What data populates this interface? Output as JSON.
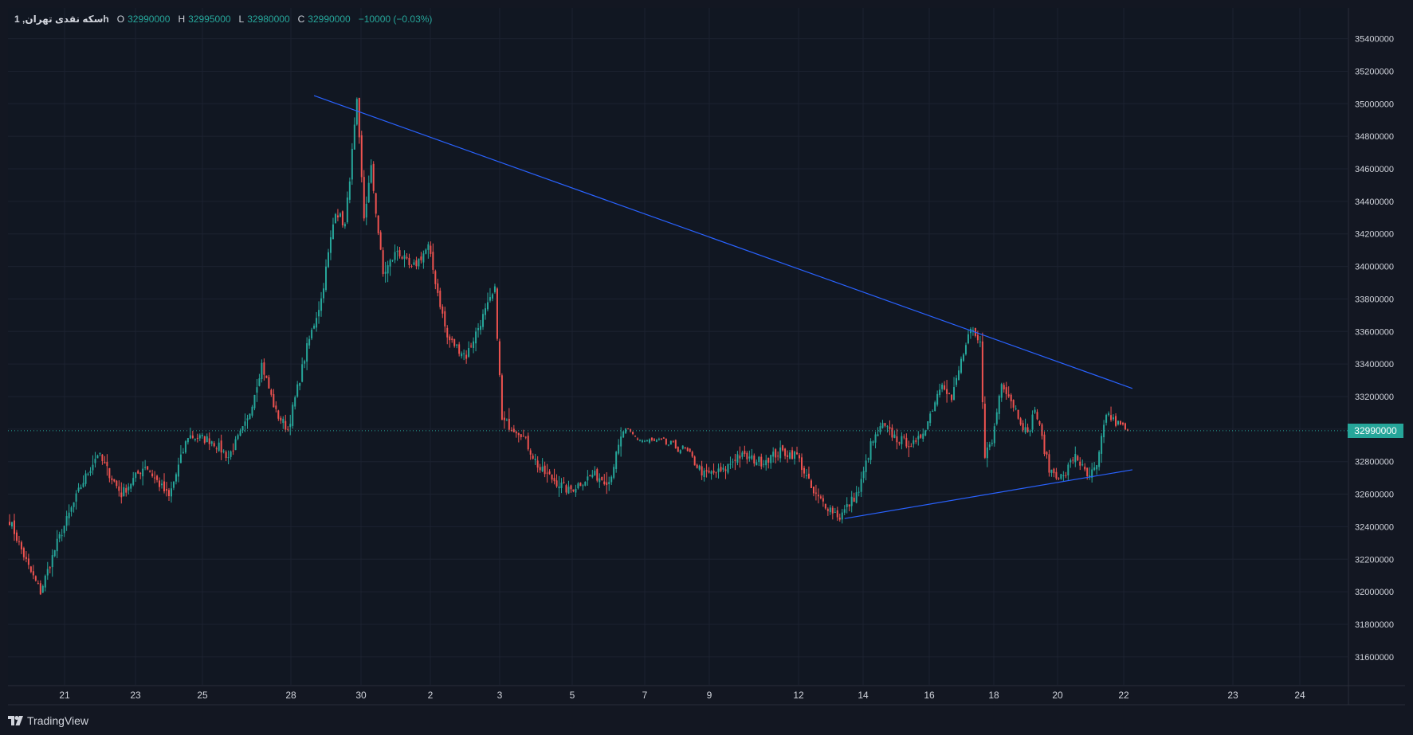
{
  "legend": {
    "symbol": "سکه نقدی تهران, 1h",
    "open_label": "O",
    "open_value": "32990000",
    "high_label": "H",
    "high_value": "32995000",
    "low_label": "L",
    "low_value": "32980000",
    "close_label": "C",
    "close_value": "32990000",
    "change": "−10000 (−0.03%)"
  },
  "brand": {
    "name": "TradingView"
  },
  "colors": {
    "up": "#26a69a",
    "down": "#ef5350",
    "trendline": "#2962ff",
    "background": "#131722"
  },
  "chart_data": {
    "type": "candlestick",
    "interval": "1h",
    "x_tick_labels": [
      "21",
      "23",
      "25",
      "28",
      "30",
      "2",
      "3",
      "5",
      "7",
      "9",
      "12",
      "14",
      "16",
      "18",
      "20",
      "22",
      "23",
      "24"
    ],
    "y_tick_labels": [
      "35400000",
      "35200000",
      "35000000",
      "34800000",
      "34600000",
      "34400000",
      "34200000",
      "34000000",
      "33800000",
      "33600000",
      "33400000",
      "33200000",
      "33000000",
      "32800000",
      "32600000",
      "32400000",
      "32200000",
      "32000000",
      "31800000",
      "31600000"
    ],
    "ylim": [
      31560000,
      35540000
    ],
    "last_price": 32990000,
    "last_price_label": "32990000",
    "grid": true,
    "swing_path": [
      [
        0,
        32440000
      ],
      [
        8,
        32150000
      ],
      [
        13,
        32000000
      ],
      [
        20,
        32300000
      ],
      [
        30,
        32650000
      ],
      [
        37,
        32850000
      ],
      [
        47,
        32600000
      ],
      [
        57,
        32780000
      ],
      [
        67,
        32580000
      ],
      [
        75,
        32960000
      ],
      [
        85,
        32930000
      ],
      [
        92,
        32830000
      ],
      [
        100,
        33050000
      ],
      [
        106,
        33400000
      ],
      [
        112,
        33100000
      ],
      [
        117,
        33000000
      ],
      [
        125,
        33500000
      ],
      [
        131,
        33800000
      ],
      [
        137,
        34350000
      ],
      [
        141,
        34250000
      ],
      [
        146,
        35000000
      ],
      [
        149,
        34300000
      ],
      [
        152,
        34600000
      ],
      [
        157,
        33950000
      ],
      [
        163,
        34100000
      ],
      [
        169,
        33980000
      ],
      [
        176,
        34120000
      ],
      [
        184,
        33560000
      ],
      [
        192,
        33450000
      ],
      [
        198,
        33660000
      ],
      [
        204,
        33850000
      ],
      [
        207,
        33050000
      ],
      [
        215,
        32980000
      ],
      [
        223,
        32750000
      ],
      [
        235,
        32620000
      ],
      [
        245,
        32720000
      ],
      [
        252,
        32680000
      ],
      [
        258,
        32990000
      ],
      [
        266,
        32930000
      ],
      [
        276,
        32910000
      ],
      [
        284,
        32870000
      ],
      [
        292,
        32720000
      ],
      [
        300,
        32740000
      ],
      [
        306,
        32840000
      ],
      [
        316,
        32800000
      ],
      [
        324,
        32860000
      ],
      [
        331,
        32840000
      ],
      [
        338,
        32600000
      ],
      [
        349,
        32460000
      ],
      [
        357,
        32620000
      ],
      [
        362,
        32900000
      ],
      [
        367,
        33020000
      ],
      [
        373,
        32940000
      ],
      [
        381,
        32900000
      ],
      [
        386,
        33050000
      ],
      [
        392,
        33300000
      ],
      [
        396,
        33180000
      ],
      [
        400,
        33420000
      ],
      [
        404,
        33600000
      ],
      [
        408,
        33520000
      ],
      [
        410,
        32850000
      ],
      [
        413,
        32920000
      ],
      [
        417,
        33300000
      ],
      [
        422,
        33150000
      ],
      [
        428,
        32960000
      ],
      [
        431,
        33130000
      ],
      [
        437,
        32750000
      ],
      [
        443,
        32700000
      ],
      [
        448,
        32850000
      ],
      [
        453,
        32700000
      ],
      [
        457,
        32760000
      ],
      [
        461,
        33100000
      ],
      [
        464,
        33050000
      ],
      [
        470,
        32990000
      ]
    ],
    "trendlines": [
      {
        "name": "resistance",
        "p1": {
          "x": 128,
          "y": 35050000
        },
        "p2": {
          "x": 472,
          "y": 33250000
        }
      },
      {
        "name": "support",
        "p1": {
          "x": 351,
          "y": 32450000
        },
        "p2": {
          "x": 472,
          "y": 32750000
        }
      }
    ]
  }
}
